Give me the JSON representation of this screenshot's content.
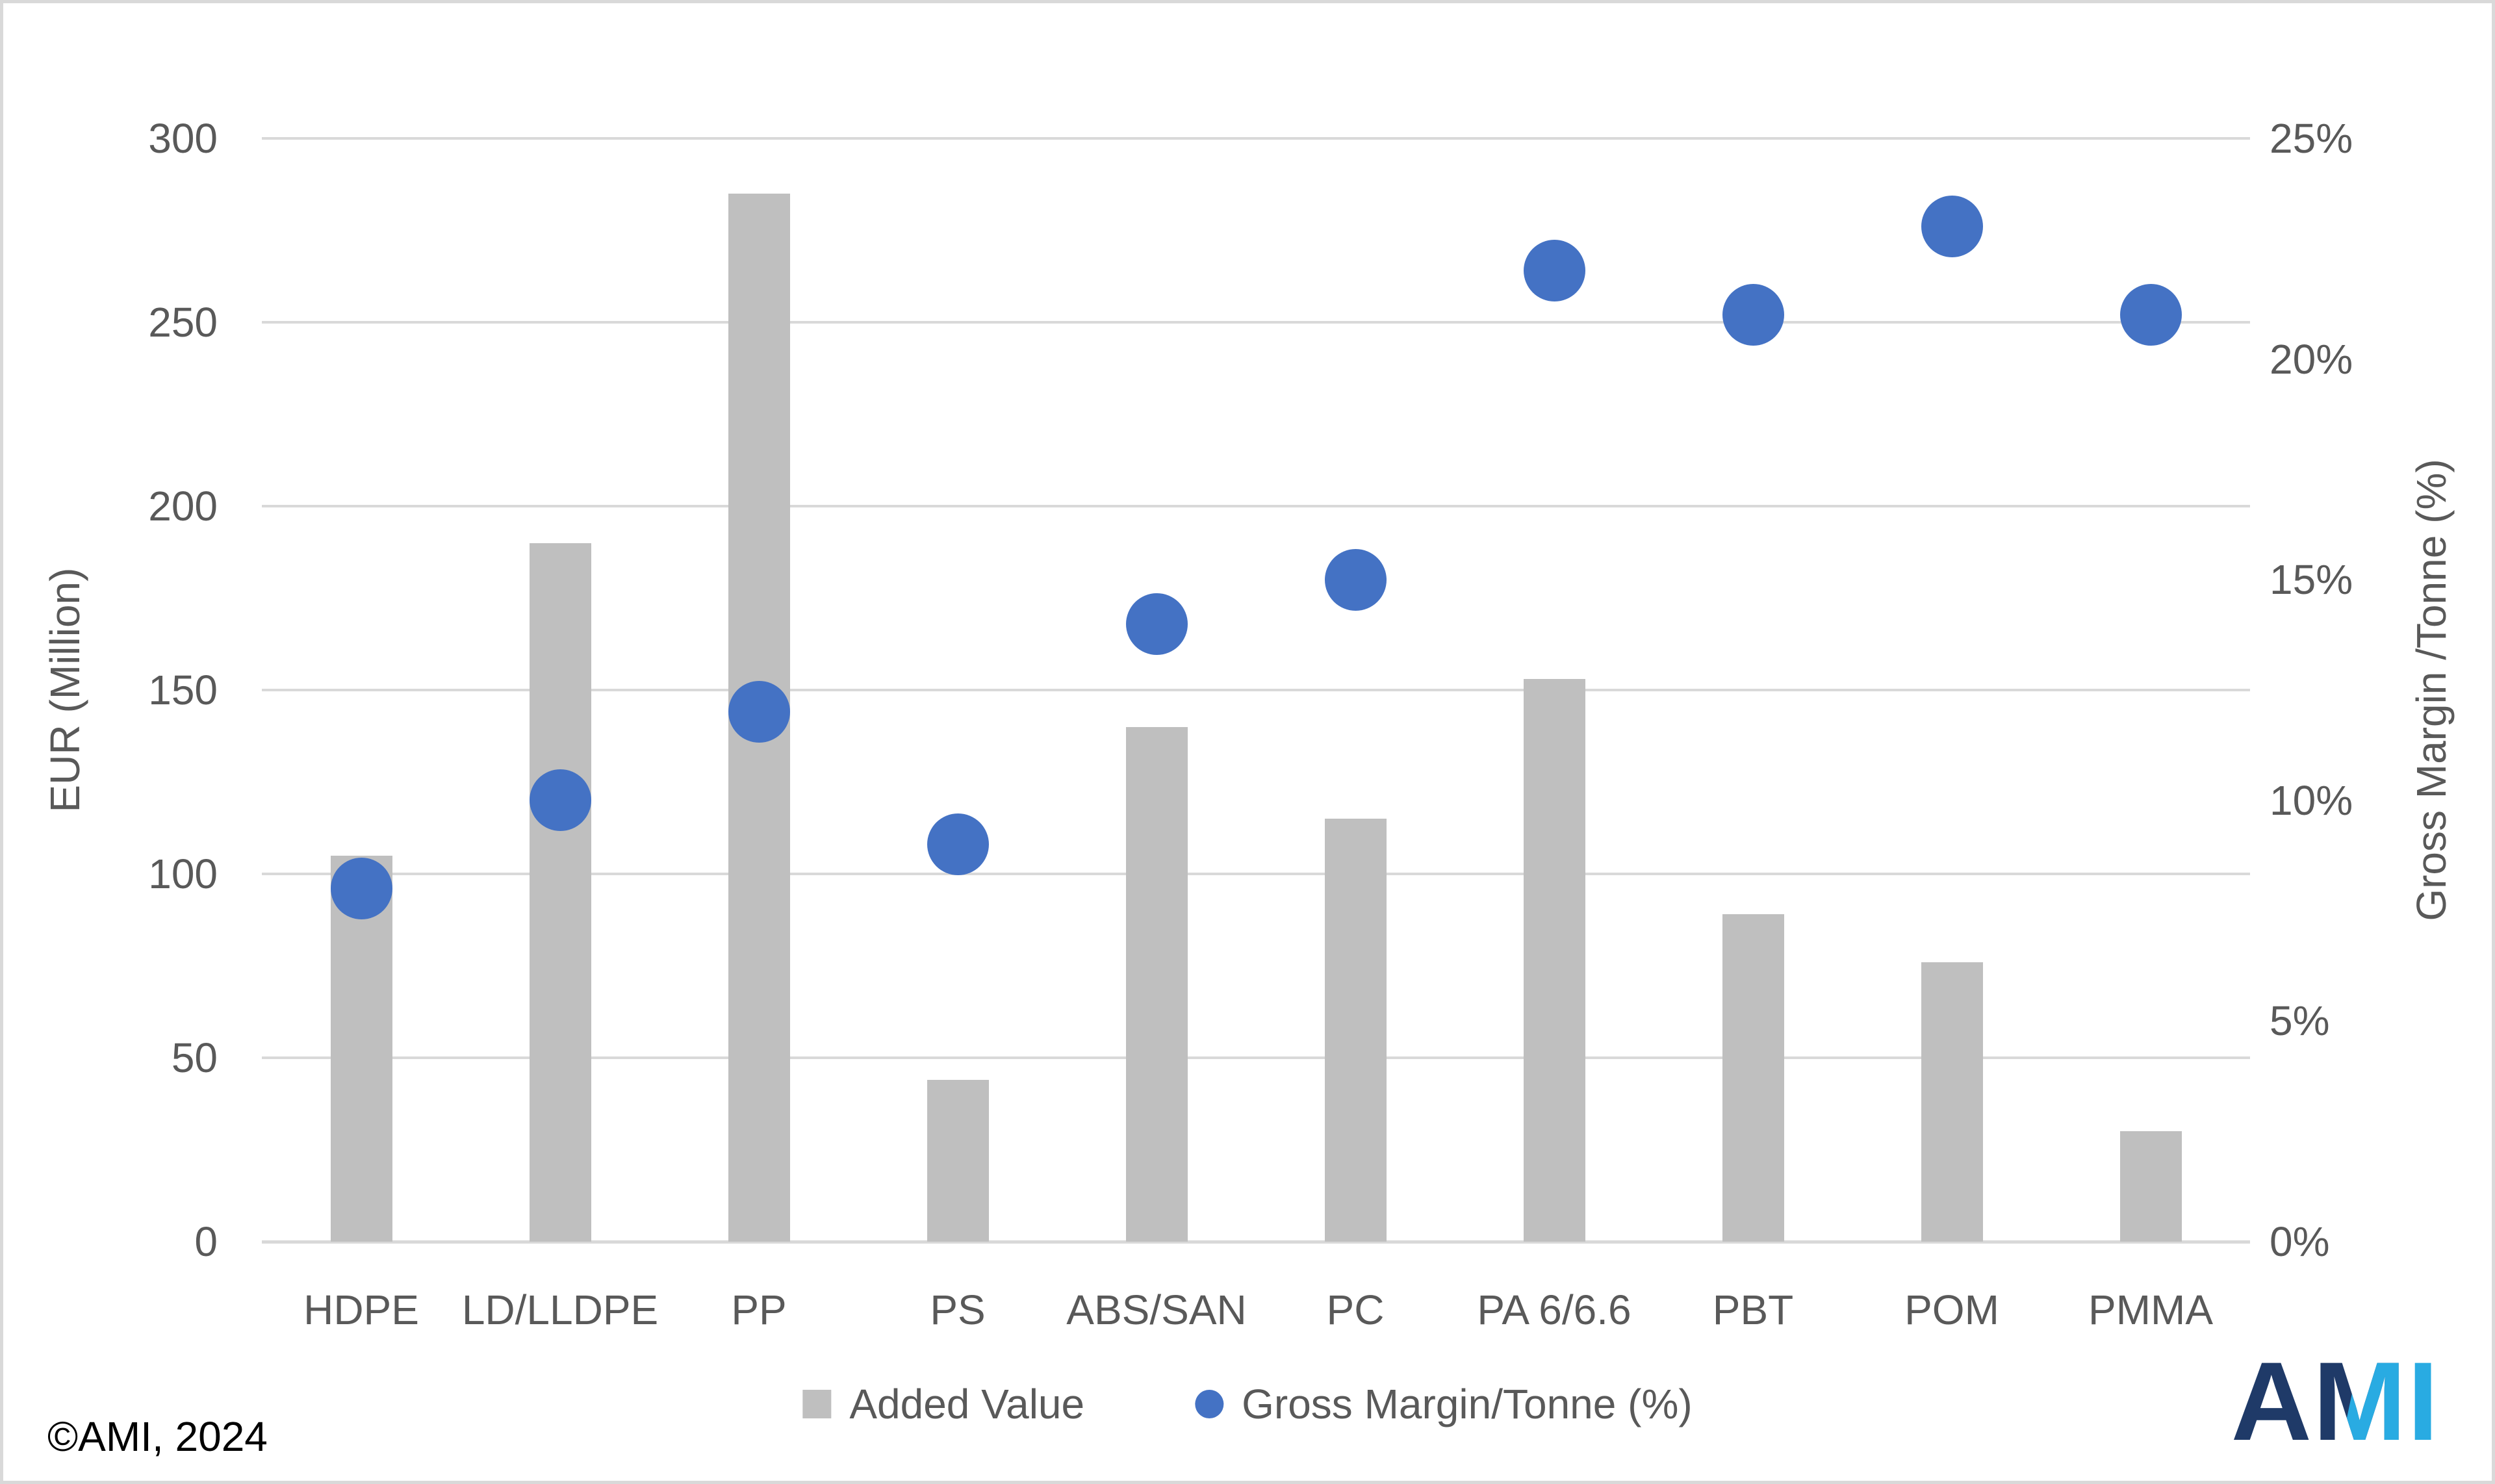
{
  "chart_data": {
    "type": "combo-bar-scatter",
    "title": "",
    "categories": [
      "HDPE",
      "LD/LLDPE",
      "PP",
      "PS",
      "ABS/SAN",
      "PC",
      "PA 6/6.6",
      "PBT",
      "POM",
      "PMMA"
    ],
    "series": [
      {
        "name": "Added Value",
        "type": "bar",
        "axis": "left",
        "color": "#BFBFBF",
        "values": [
          105,
          190,
          285,
          44,
          140,
          115,
          153,
          89,
          76,
          30
        ]
      },
      {
        "name": "Gross Margin/Tonne (%)",
        "type": "scatter",
        "axis": "right",
        "color": "#4472C4",
        "values": [
          8,
          10,
          12,
          9,
          14,
          15,
          22,
          21,
          23,
          21
        ]
      }
    ],
    "left_axis": {
      "title": "EUR (Million)",
      "min": 0,
      "max": 300,
      "step": 50,
      "tick_labels": [
        "0",
        "50",
        "100",
        "150",
        "200",
        "250",
        "300"
      ]
    },
    "right_axis": {
      "title": "Gross Margin /Tonne (%)",
      "min": 0,
      "max": 25,
      "step": 5,
      "tick_labels": [
        "0%",
        "5%",
        "10%",
        "15%",
        "20%",
        "25%"
      ]
    },
    "grid": true,
    "gridline_color": "#D9D9D9",
    "legend_position": "bottom"
  },
  "legend": {
    "items": [
      {
        "label": "Added Value",
        "marker": "square",
        "color": "#BFBFBF"
      },
      {
        "label": "Gross Margin/Tonne (%)",
        "marker": "circle",
        "color": "#4472C4"
      }
    ]
  },
  "footer": {
    "copyright": "©AMI, 2024"
  },
  "logo": {
    "letter_a": "A",
    "letter_m": "M",
    "letter_i": "I",
    "navy": "#1F3A68",
    "cyan": "#29ABE2"
  }
}
